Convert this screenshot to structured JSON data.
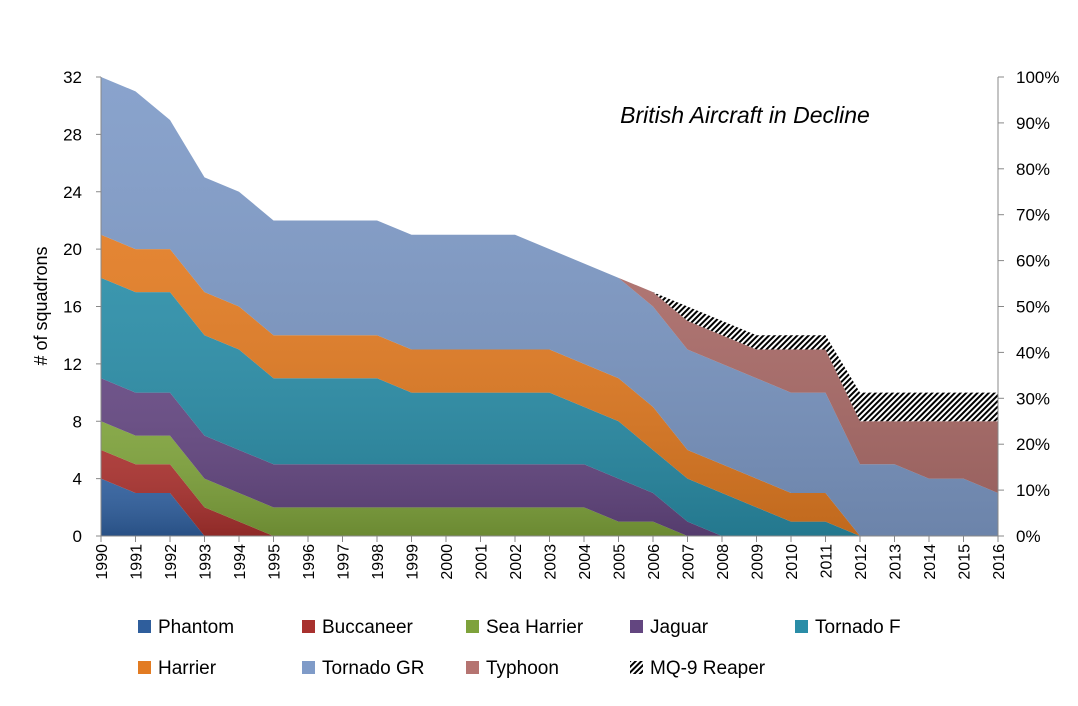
{
  "chart_data": {
    "type": "area",
    "stacked": true,
    "title": "British Aircraft in Decline",
    "xlabel": "",
    "ylabel": "# of squadrons",
    "ylim": [
      0,
      32
    ],
    "yticks": [
      0,
      4,
      8,
      12,
      16,
      20,
      24,
      28,
      32
    ],
    "y2lim": [
      0,
      100
    ],
    "y2ticks": [
      "0%",
      "10%",
      "20%",
      "30%",
      "40%",
      "50%",
      "60%",
      "70%",
      "80%",
      "90%",
      "100%"
    ],
    "legend_position": "bottom",
    "grid": false,
    "categories": [
      "1990",
      "1991",
      "1992",
      "1993",
      "1994",
      "1995",
      "1996",
      "1997",
      "1998",
      "1999",
      "2000",
      "2001",
      "2002",
      "2003",
      "2004",
      "2005",
      "2006",
      "2007",
      "2008",
      "2009",
      "2010",
      "2011",
      "2012",
      "2013",
      "2014",
      "2015",
      "2016"
    ],
    "series": [
      {
        "name": "Phantom",
        "color": "#2f5e9c",
        "values": [
          4,
          3,
          3,
          0,
          0,
          0,
          0,
          0,
          0,
          0,
          0,
          0,
          0,
          0,
          0,
          0,
          0,
          0,
          0,
          0,
          0,
          0,
          0,
          0,
          0,
          0,
          0
        ]
      },
      {
        "name": "Buccaneer",
        "color": "#a8312e",
        "values": [
          2,
          2,
          2,
          2,
          1,
          0,
          0,
          0,
          0,
          0,
          0,
          0,
          0,
          0,
          0,
          0,
          0,
          0,
          0,
          0,
          0,
          0,
          0,
          0,
          0,
          0,
          0
        ]
      },
      {
        "name": "Sea Harrier",
        "color": "#7ea23b",
        "values": [
          2,
          2,
          2,
          2,
          2,
          2,
          2,
          2,
          2,
          2,
          2,
          2,
          2,
          2,
          2,
          1,
          1,
          0,
          0,
          0,
          0,
          0,
          0,
          0,
          0,
          0,
          0
        ]
      },
      {
        "name": "Jaguar",
        "color": "#634680",
        "values": [
          3,
          3,
          3,
          3,
          3,
          3,
          3,
          3,
          3,
          3,
          3,
          3,
          3,
          3,
          3,
          3,
          2,
          1,
          0,
          0,
          0,
          0,
          0,
          0,
          0,
          0,
          0
        ]
      },
      {
        "name": "Tornado F",
        "color": "#2a8da7",
        "values": [
          7,
          7,
          7,
          7,
          7,
          6,
          6,
          6,
          6,
          5,
          5,
          5,
          5,
          5,
          4,
          4,
          3,
          3,
          3,
          2,
          1,
          1,
          0,
          0,
          0,
          0,
          0
        ]
      },
      {
        "name": "Harrier",
        "color": "#e27b22",
        "values": [
          3,
          3,
          3,
          3,
          3,
          3,
          3,
          3,
          3,
          3,
          3,
          3,
          3,
          3,
          3,
          3,
          3,
          2,
          2,
          2,
          2,
          2,
          0,
          0,
          0,
          0,
          0
        ]
      },
      {
        "name": "Tornado GR",
        "color": "#7f9bc8",
        "values": [
          11,
          11,
          9,
          8,
          8,
          8,
          8,
          8,
          8,
          8,
          8,
          8,
          8,
          7,
          7,
          7,
          7,
          7,
          7,
          7,
          7,
          7,
          5,
          5,
          4,
          4,
          3
        ]
      },
      {
        "name": "Typhoon",
        "color": "#b57471",
        "values": [
          0,
          0,
          0,
          0,
          0,
          0,
          0,
          0,
          0,
          0,
          0,
          0,
          0,
          0,
          0,
          0,
          1,
          2,
          2,
          2,
          3,
          3,
          3,
          3,
          4,
          4,
          5
        ]
      },
      {
        "name": "MQ-9 Reaper",
        "color": "hatch",
        "values": [
          0,
          0,
          0,
          0,
          0,
          0,
          0,
          0,
          0,
          0,
          0,
          0,
          0,
          0,
          0,
          0,
          0,
          1,
          1,
          1,
          1,
          1,
          2,
          2,
          2,
          2,
          2
        ]
      }
    ]
  }
}
